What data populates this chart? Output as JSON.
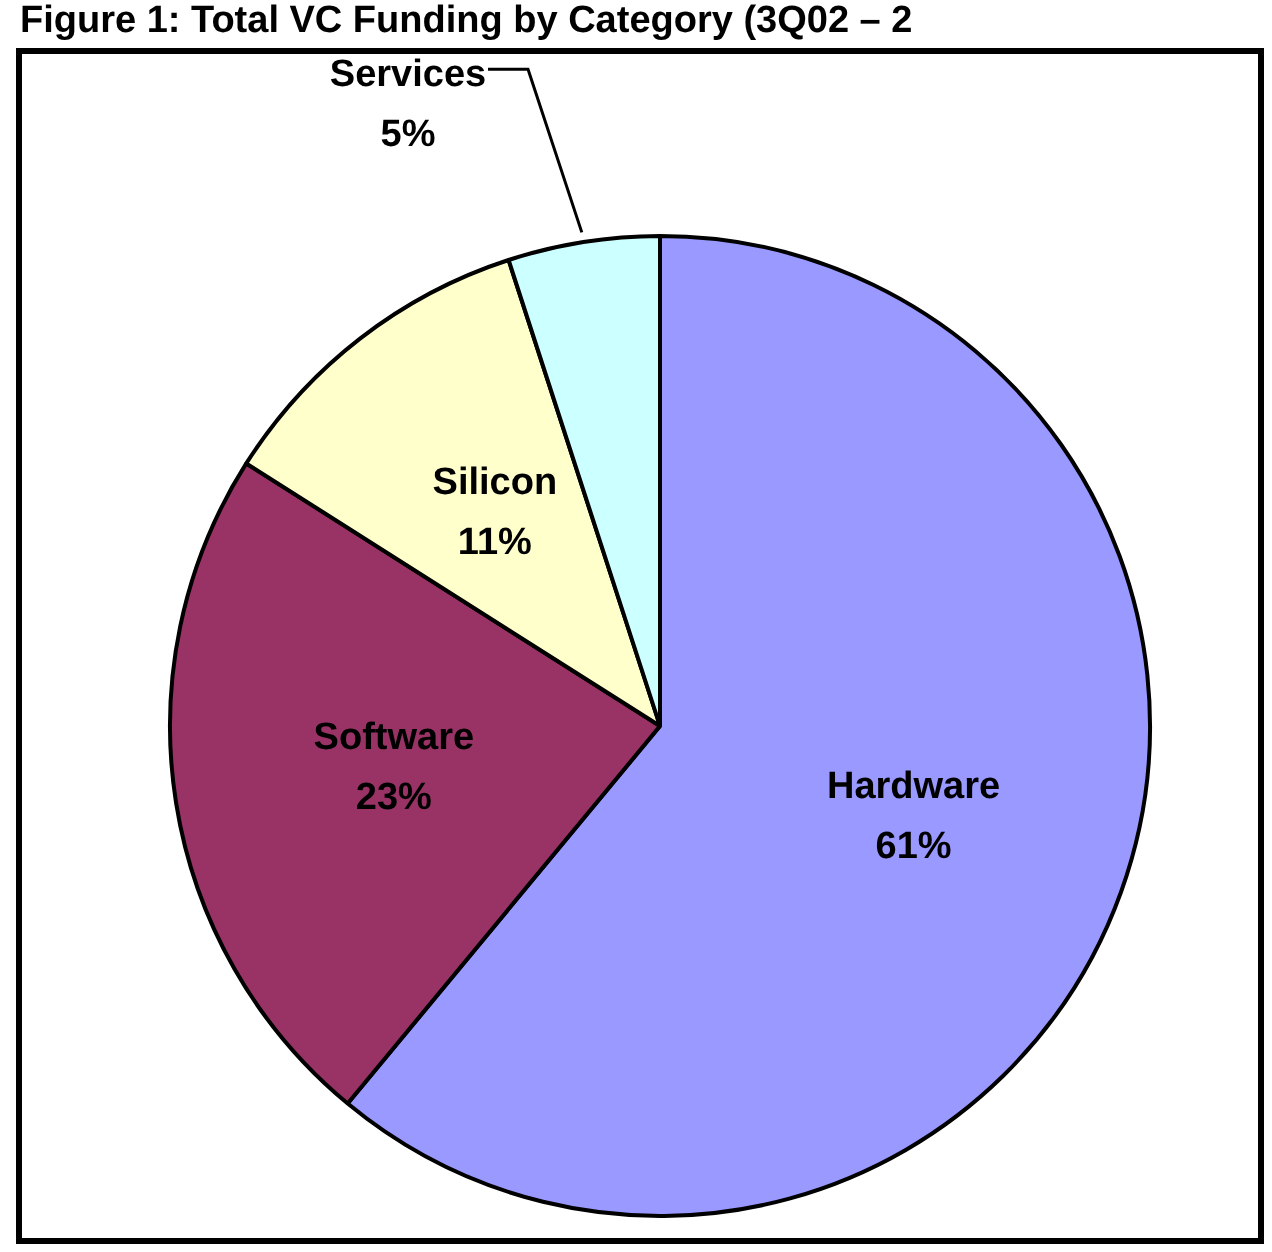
{
  "chart_data": {
    "type": "pie",
    "title": "Figure 1: Total VC Funding by Category (3Q02 – 2",
    "categories": [
      "Hardware",
      "Software",
      "Silicon",
      "Services"
    ],
    "values": [
      61,
      23,
      11,
      5
    ],
    "value_labels": [
      "61%",
      "23%",
      "11%",
      "5%"
    ],
    "colors": [
      "#9999ff",
      "#993366",
      "#ffffcc",
      "#ccffff"
    ],
    "legend": false
  }
}
